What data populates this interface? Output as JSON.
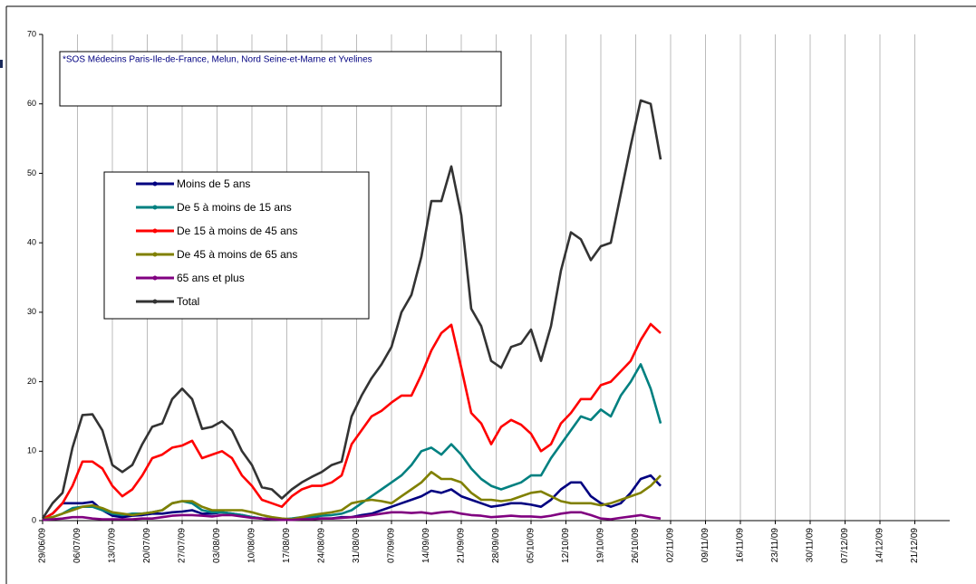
{
  "chart_data": {
    "type": "line",
    "annotation": "*SOS Médecins Paris-Ile-de-France, Melun, Nord Seine-et-Marne et Yvelines",
    "x": [
      "29/06/09",
      "01/07/09",
      "03/07/09",
      "05/07/09",
      "07/07/09",
      "09/07/09",
      "11/07/09",
      "13/07/09",
      "15/07/09",
      "17/07/09",
      "19/07/09",
      "21/07/09",
      "23/07/09",
      "25/07/09",
      "27/07/09",
      "29/07/09",
      "31/07/09",
      "02/08/09",
      "04/08/09",
      "06/08/09",
      "08/08/09",
      "10/08/09",
      "12/08/09",
      "14/08/09",
      "16/08/09",
      "18/08/09",
      "20/08/09",
      "22/08/09",
      "24/08/09",
      "26/08/09",
      "28/08/09",
      "30/08/09",
      "01/09/09",
      "03/09/09",
      "05/09/09",
      "07/09/09",
      "09/09/09",
      "11/09/09",
      "13/09/09",
      "15/09/09",
      "17/09/09",
      "19/09/09",
      "21/09/09",
      "23/09/09",
      "25/09/09",
      "27/09/09",
      "29/09/09",
      "01/10/09",
      "03/10/09",
      "05/10/09",
      "07/10/09",
      "09/10/09",
      "11/10/09",
      "13/10/09",
      "15/10/09",
      "17/10/09",
      "19/10/09",
      "21/10/09",
      "23/10/09",
      "25/10/09",
      "27/10/09",
      "29/10/09",
      "31/10/09"
    ],
    "series": [
      {
        "name": "Moins de 5 ans",
        "color": "#000080",
        "values": [
          0.2,
          1,
          2.5,
          2.5,
          2.5,
          2.7,
          1.5,
          0.7,
          0.5,
          0.7,
          0.8,
          1,
          1,
          1.2,
          1.3,
          1.5,
          1,
          1,
          1.2,
          1,
          0.8,
          0.5,
          0.3,
          0.2,
          0.2,
          0.2,
          0.3,
          0.3,
          0.3,
          0.3,
          0.5,
          0.5,
          0.8,
          1,
          1.5,
          2,
          2.5,
          3,
          3.5,
          4.3,
          4,
          4.5,
          3.5,
          3,
          2.5,
          2,
          2.2,
          2.5,
          2.5,
          2.3,
          2,
          3,
          4.5,
          5.5,
          5.5,
          3.5,
          2.5,
          2,
          2.5,
          4,
          6,
          6.5,
          5
        ]
      },
      {
        "name": "De 5 à moins de 15 ans",
        "color": "#008080",
        "values": [
          0.2,
          0.5,
          1,
          1.8,
          2,
          2,
          1.5,
          1,
          0.8,
          1,
          1,
          1.2,
          1.5,
          2.5,
          2.8,
          2.5,
          1.5,
          1.2,
          1.2,
          1,
          0.8,
          0.5,
          0.3,
          0.2,
          0.2,
          0.3,
          0.5,
          0.5,
          0.7,
          0.8,
          1,
          1.5,
          2.5,
          3.5,
          4.5,
          5.5,
          6.5,
          8,
          10,
          10.5,
          9.5,
          11,
          9.5,
          7.5,
          6,
          5,
          4.5,
          5,
          5.5,
          6.5,
          6.5,
          9,
          11,
          13,
          15,
          14.5,
          16,
          15,
          18,
          20,
          22.5,
          19,
          14
        ]
      },
      {
        "name": "De 15 à moins de 45 ans",
        "color": "#ff0000",
        "values": [
          0.2,
          1,
          2.5,
          5,
          8.5,
          8.5,
          7.5,
          5,
          3.5,
          4.5,
          6.5,
          9,
          9.5,
          10.5,
          10.8,
          11.5,
          9,
          9.5,
          10,
          9,
          6.5,
          5,
          3,
          2.5,
          2,
          3.5,
          4.5,
          5,
          5,
          5.5,
          6.5,
          11,
          13,
          15,
          15.8,
          17,
          18,
          18,
          21,
          24.5,
          27,
          28.2,
          22,
          15.5,
          14,
          11,
          13.5,
          14.5,
          13.8,
          12.5,
          10,
          11,
          14,
          15.5,
          17.5,
          17.5,
          19.5,
          20,
          21.5,
          23,
          26,
          28.3,
          27
        ]
      },
      {
        "name": "De 45 à moins de 65 ans",
        "color": "#808000",
        "values": [
          0.2,
          0.5,
          1,
          1.5,
          2,
          2.2,
          1.8,
          1.2,
          1,
          0.8,
          1,
          1.2,
          1.5,
          2.5,
          2.8,
          2.8,
          2,
          1.5,
          1.5,
          1.5,
          1.5,
          1.2,
          0.8,
          0.5,
          0.3,
          0.2,
          0.5,
          0.8,
          1,
          1.2,
          1.5,
          2.5,
          2.8,
          3,
          2.8,
          2.5,
          3.5,
          4.5,
          5.5,
          7,
          6,
          6,
          5.5,
          4,
          3,
          3,
          2.8,
          3,
          3.5,
          4,
          4.2,
          3.5,
          2.8,
          2.5,
          2.5,
          2.5,
          2.2,
          2.5,
          3,
          3.5,
          4,
          5,
          6.5
        ]
      },
      {
        "name": "65 ans et plus",
        "color": "#800080",
        "values": [
          0.1,
          0.2,
          0.3,
          0.5,
          0.5,
          0.3,
          0.2,
          0.2,
          0.2,
          0.2,
          0.3,
          0.3,
          0.5,
          0.7,
          0.8,
          0.8,
          0.7,
          0.6,
          0.8,
          0.8,
          0.6,
          0.4,
          0.3,
          0.2,
          0.1,
          0.1,
          0.2,
          0.2,
          0.3,
          0.3,
          0.4,
          0.5,
          0.6,
          0.8,
          1,
          1.2,
          1.2,
          1.1,
          1.2,
          1,
          1.2,
          1.3,
          1,
          0.8,
          0.7,
          0.5,
          0.6,
          0.7,
          0.6,
          0.6,
          0.5,
          0.7,
          1,
          1.2,
          1.2,
          0.8,
          0.3,
          0.2,
          0.4,
          0.6,
          0.8,
          0.5,
          0.3
        ]
      },
      {
        "name": "Total",
        "color": "#333333",
        "values": [
          0.3,
          2.5,
          4,
          10.5,
          15.2,
          15.3,
          13,
          8,
          7,
          8,
          11,
          13.5,
          14,
          17.5,
          19,
          17.5,
          13.2,
          13.5,
          14.3,
          13,
          10,
          8,
          4.8,
          4.5,
          3.2,
          4.5,
          5.5,
          6.3,
          7,
          8,
          8.5,
          15,
          18,
          20.5,
          22.5,
          25,
          30,
          32.5,
          38,
          46,
          46,
          51,
          44,
          30.5,
          28,
          23,
          22,
          25,
          25.5,
          27.5,
          23,
          28,
          36,
          41.5,
          40.5,
          37.5,
          39.5,
          40,
          47,
          54,
          60.5,
          60,
          52
        ]
      }
    ],
    "xlim": [
      "29/06/09",
      "28/12/09"
    ],
    "xticks": [
      "29/06/09",
      "06/07/09",
      "13/07/09",
      "20/07/09",
      "27/07/09",
      "03/08/09",
      "10/08/09",
      "17/08/09",
      "24/08/09",
      "31/08/09",
      "07/09/09",
      "14/09/09",
      "21/09/09",
      "28/09/09",
      "05/10/09",
      "12/10/09",
      "19/10/09",
      "26/10/09",
      "02/11/09",
      "09/11/09",
      "16/11/09",
      "23/11/09",
      "30/11/09",
      "07/12/09",
      "14/12/09",
      "21/12/09"
    ],
    "ylim": [
      0,
      70
    ],
    "yticks": [
      0,
      10,
      20,
      30,
      40,
      50,
      60,
      70
    ],
    "grid": true
  }
}
